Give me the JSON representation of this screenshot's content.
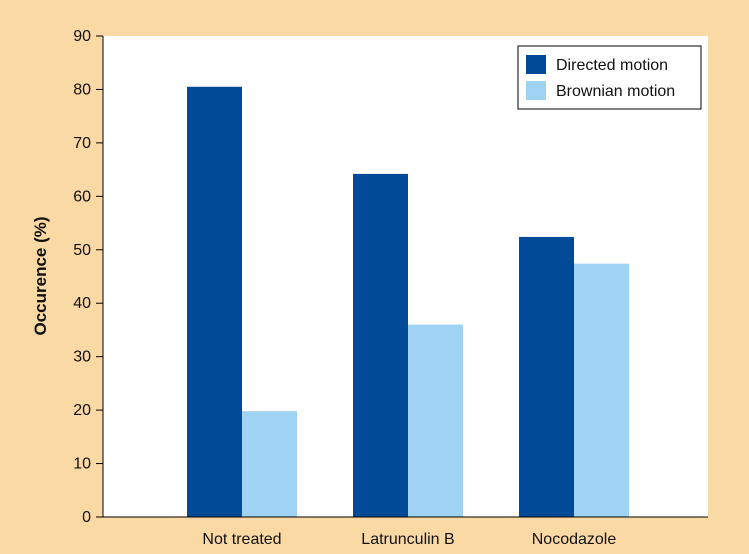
{
  "chart_data": {
    "type": "bar",
    "title": "",
    "xlabel": "",
    "ylabel": "Occurence (%)",
    "ylim": [
      0,
      90
    ],
    "yticks": [
      0,
      10,
      20,
      30,
      40,
      50,
      60,
      70,
      80,
      90
    ],
    "categories": [
      "Not treated",
      "Latrunculin B",
      "Nocodazole"
    ],
    "series": [
      {
        "name": "Directed motion",
        "color": "#004a97",
        "values": [
          80.5,
          64.2,
          52.4
        ]
      },
      {
        "name": "Brownian motion",
        "color": "#9fd3f3",
        "values": [
          19.8,
          36.0,
          47.4
        ]
      }
    ],
    "grid": false,
    "legend_position": "top-right",
    "background_color": "#fbd9a4",
    "plot_background_color": "#ffffff"
  }
}
